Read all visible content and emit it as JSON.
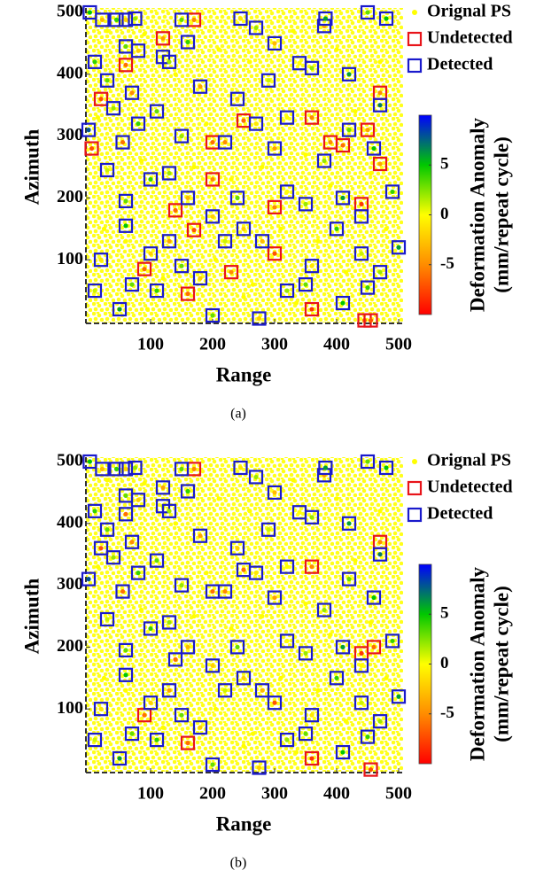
{
  "chart_data": [
    {
      "type": "scatter",
      "caption": "(a)",
      "xlabel": "Range",
      "ylabel": "Azimuth",
      "xlim": [
        0,
        500
      ],
      "ylim": [
        0,
        500
      ],
      "xticks": [
        100,
        200,
        300,
        400,
        500
      ],
      "yticks": [
        100,
        200,
        300,
        400,
        500
      ],
      "legend": "right",
      "colorbar": {
        "label": [
          "Deformation Anomaly",
          "(mm/repeat cycle)"
        ],
        "clim": [
          -10,
          10
        ],
        "ticks": [
          5,
          0,
          -5
        ],
        "colormap": [
          "#ff0000",
          "#ff8c00",
          "#ffff00",
          "#00c800",
          "#0000ff"
        ]
      },
      "series": [
        {
          "name": "Orignal PS",
          "color": "#ffff00",
          "x": [
            30,
            90,
            140,
            210,
            260,
            330,
            400,
            470,
            15,
            85,
            190,
            280,
            350,
            430,
            60,
            170,
            230,
            310,
            390,
            480,
            120,
            250,
            370,
            25,
            205,
            335,
            415,
            95,
            265,
            455
          ],
          "y": [
            470,
            465,
            400,
            440,
            420,
            470,
            440,
            420,
            330,
            260,
            320,
            250,
            270,
            340,
            130,
            250,
            230,
            150,
            220,
            150,
            70,
            40,
            130,
            150,
            100,
            30,
            80,
            20,
            60,
            240
          ]
        },
        {
          "name": "Undetected",
          "color": "#e8141a",
          "x": [
            170,
            120,
            60,
            20,
            360,
            450,
            200,
            5,
            200,
            140,
            170,
            300,
            250,
            390,
            440,
            470,
            90,
            230,
            300,
            160,
            360,
            445,
            455,
            470,
            410
          ],
          "y": [
            488,
            458,
            415,
            360,
            330,
            310,
            290,
            280,
            230,
            180,
            148,
            185,
            325,
            290,
            190,
            255,
            85,
            80,
            110,
            45,
            20,
            2,
            2,
            370,
            285
          ],
          "values": [
            -5,
            -4,
            -6,
            -7,
            -5,
            -4,
            -6,
            -7,
            -5,
            -6,
            -7,
            -5,
            -6,
            -5,
            -8,
            -4,
            -6,
            -5,
            -7,
            -6,
            -8,
            -6,
            -7,
            -5,
            -6
          ]
        },
        {
          "name": "Detected",
          "color": "#1a1acc",
          "x": [
            2,
            22,
            45,
            60,
            75,
            150,
            245,
            270,
            380,
            382,
            450,
            480,
            60,
            80,
            120,
            130,
            160,
            300,
            340,
            360,
            420,
            10,
            30,
            40,
            70,
            110,
            180,
            240,
            290,
            320,
            470,
            420,
            0,
            55,
            80,
            150,
            220,
            270,
            300,
            380,
            460,
            30,
            60,
            100,
            130,
            160,
            200,
            240,
            320,
            350,
            410,
            490,
            20,
            10,
            50,
            70,
            100,
            110,
            150,
            180,
            200,
            280,
            320,
            360,
            410,
            440,
            450,
            470,
            500,
            275,
            350,
            60,
            130,
            220,
            250,
            400,
            440
          ],
          "y": [
            500,
            488,
            488,
            488,
            490,
            488,
            490,
            475,
            478,
            490,
            500,
            490,
            445,
            438,
            428,
            420,
            452,
            450,
            418,
            410,
            400,
            420,
            390,
            345,
            370,
            340,
            380,
            360,
            390,
            330,
            350,
            310,
            310,
            290,
            320,
            300,
            290,
            320,
            280,
            260,
            280,
            245,
            195,
            230,
            240,
            200,
            170,
            200,
            210,
            190,
            200,
            210,
            100,
            50,
            20,
            60,
            110,
            50,
            90,
            70,
            10,
            130,
            50,
            90,
            30,
            110,
            55,
            80,
            120,
            5,
            60,
            155,
            130,
            130,
            150,
            150,
            170
          ],
          "values": [
            5,
            -3,
            4,
            -2,
            2,
            3,
            -1,
            2,
            -4,
            6,
            3,
            5,
            3,
            -2,
            1,
            2,
            4,
            -3,
            0,
            2,
            6,
            4,
            3,
            2,
            -5,
            3,
            -4,
            -2,
            1,
            0,
            7,
            3,
            8,
            -6,
            4,
            2,
            -5,
            -1,
            -4,
            2,
            5,
            1,
            3,
            4,
            2,
            -3,
            -2,
            3,
            0,
            2,
            6,
            4,
            -1,
            1,
            6,
            3,
            -2,
            4,
            3,
            -2,
            3,
            -3,
            2,
            -1,
            5,
            1,
            4,
            2,
            6,
            -2,
            3,
            5,
            -4,
            1,
            -2,
            4,
            0
          ]
        }
      ]
    },
    {
      "type": "scatter",
      "caption": "(b)",
      "xlabel": "Range",
      "ylabel": "Azimuth",
      "xlim": [
        0,
        500
      ],
      "ylim": [
        0,
        500
      ],
      "xticks": [
        100,
        200,
        300,
        400,
        500
      ],
      "yticks": [
        100,
        200,
        300,
        400,
        500
      ],
      "legend": "right",
      "colorbar": {
        "label": [
          "Deformation Anomaly",
          "(mm/repeat cycle)"
        ],
        "clim": [
          -10,
          10
        ],
        "ticks": [
          5,
          0,
          -5
        ],
        "colormap": [
          "#ff0000",
          "#ff8c00",
          "#ffff00",
          "#00c800",
          "#0000ff"
        ]
      },
      "series": [
        {
          "name": "Orignal PS",
          "color": "#ffff00",
          "x": [
            30,
            90,
            140,
            210,
            260,
            330,
            400,
            470,
            15,
            85,
            190,
            280,
            350,
            430,
            60,
            170,
            230,
            310,
            390,
            480,
            120,
            250,
            370,
            25,
            205,
            335,
            415,
            95,
            265,
            455
          ],
          "y": [
            470,
            465,
            400,
            440,
            420,
            470,
            440,
            420,
            330,
            260,
            320,
            250,
            270,
            340,
            130,
            250,
            230,
            150,
            220,
            150,
            70,
            40,
            130,
            150,
            100,
            30,
            80,
            20,
            60,
            240
          ]
        },
        {
          "name": "Undetected",
          "color": "#e8141a",
          "x": [
            170,
            360,
            90,
            160,
            360,
            455,
            470,
            440,
            460
          ],
          "y": [
            488,
            330,
            90,
            45,
            20,
            2,
            370,
            190,
            200
          ],
          "values": [
            -5,
            -5,
            -6,
            -6,
            -8,
            -7,
            -5,
            -8,
            -6
          ]
        },
        {
          "name": "Detected",
          "color": "#1a1acc",
          "x": [
            2,
            22,
            45,
            60,
            75,
            150,
            245,
            270,
            380,
            382,
            450,
            480,
            60,
            80,
            120,
            130,
            160,
            300,
            340,
            360,
            420,
            10,
            30,
            40,
            70,
            110,
            180,
            240,
            290,
            320,
            470,
            420,
            0,
            55,
            80,
            150,
            220,
            270,
            300,
            380,
            460,
            30,
            60,
            100,
            130,
            160,
            200,
            240,
            320,
            350,
            410,
            490,
            20,
            10,
            50,
            70,
            100,
            110,
            150,
            180,
            200,
            280,
            320,
            360,
            410,
            440,
            450,
            470,
            500,
            275,
            350,
            60,
            130,
            220,
            250,
            400,
            440,
            120,
            60,
            20,
            200,
            140,
            250,
            300
          ],
          "y": [
            500,
            488,
            488,
            488,
            490,
            488,
            490,
            475,
            478,
            490,
            500,
            490,
            445,
            438,
            428,
            420,
            452,
            450,
            418,
            410,
            400,
            420,
            390,
            345,
            370,
            340,
            380,
            360,
            390,
            330,
            350,
            310,
            310,
            290,
            320,
            300,
            290,
            320,
            280,
            260,
            280,
            245,
            195,
            230,
            240,
            200,
            170,
            200,
            210,
            190,
            200,
            210,
            100,
            50,
            20,
            60,
            110,
            50,
            90,
            70,
            10,
            130,
            50,
            90,
            30,
            110,
            55,
            80,
            120,
            5,
            60,
            155,
            130,
            130,
            150,
            150,
            170,
            458,
            415,
            360,
            290,
            180,
            325,
            110
          ],
          "values": [
            5,
            -3,
            4,
            -2,
            2,
            3,
            -1,
            2,
            -4,
            6,
            3,
            5,
            3,
            -2,
            1,
            2,
            4,
            -3,
            0,
            2,
            6,
            4,
            3,
            2,
            -5,
            3,
            -4,
            -2,
            1,
            0,
            7,
            3,
            8,
            -6,
            4,
            2,
            -5,
            -1,
            -4,
            2,
            5,
            1,
            3,
            4,
            2,
            -3,
            -2,
            3,
            0,
            2,
            6,
            4,
            -1,
            1,
            6,
            3,
            -2,
            4,
            3,
            -2,
            3,
            -3,
            2,
            -1,
            5,
            1,
            4,
            2,
            6,
            -2,
            3,
            5,
            -4,
            1,
            -2,
            4,
            0,
            -4,
            -6,
            -7,
            -6,
            -6,
            -6,
            -7
          ]
        }
      ]
    }
  ]
}
